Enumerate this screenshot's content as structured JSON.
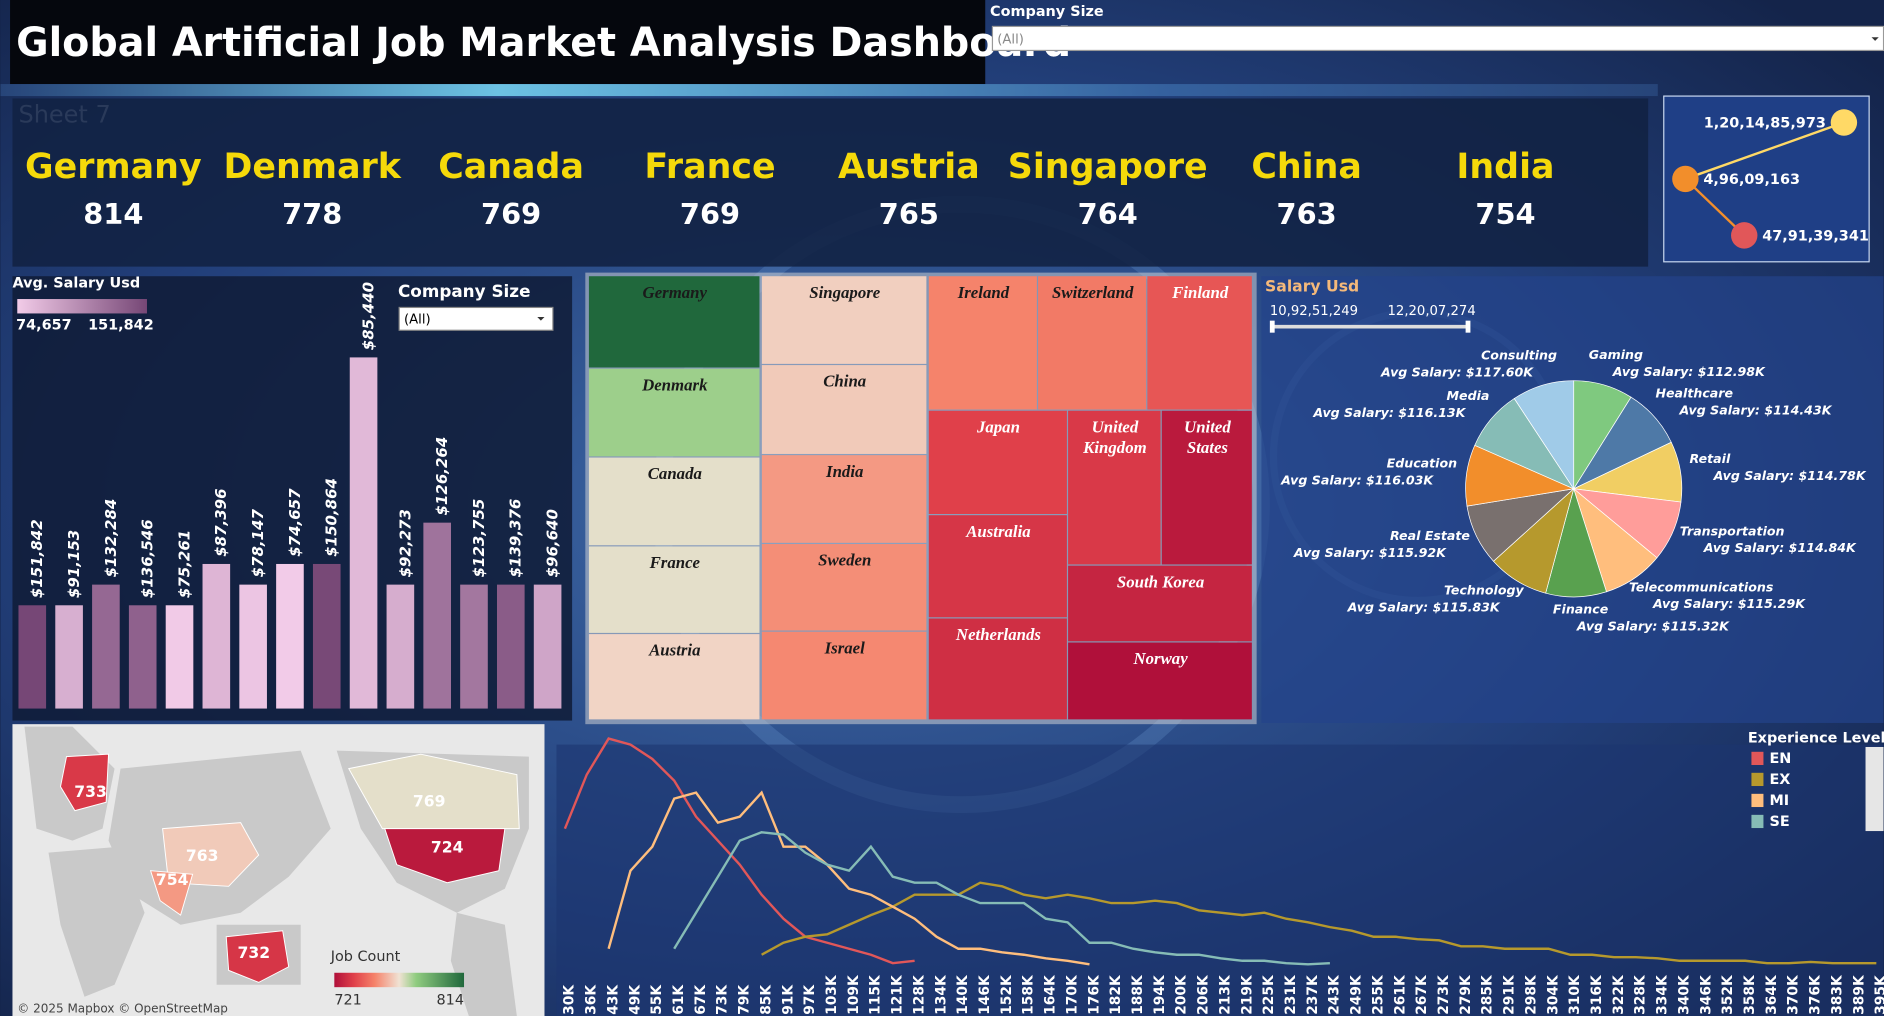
{
  "header": {
    "title": "Global Artificial Job Market Analysis Dashboard",
    "filter_label": "Company Size",
    "filter_value": "(All)"
  },
  "kpi": {
    "sheet": "Sheet 7",
    "countries": [
      "Germany",
      "Denmark",
      "Canada",
      "France",
      "Austria",
      "Singapore",
      "China",
      "India"
    ],
    "counts": [
      814,
      778,
      769,
      769,
      765,
      764,
      763,
      754
    ]
  },
  "chart_data": [
    {
      "type": "dot-line",
      "values": [
        1201485973,
        49609163,
        479139341
      ],
      "value_labels": [
        "1,20,14,85,973",
        "4,96,09,163",
        "47,91,39,341"
      ],
      "colors": [
        "#ffd966",
        "#f28e2b",
        "#e15759"
      ]
    },
    {
      "type": "bar",
      "legend_title": "Avg. Salary Usd",
      "filter_label": "Company Size",
      "filter_value": "(All)",
      "colorlim": [
        {
          "value": 74657,
          "label": "74,657"
        },
        {
          "value": 151842,
          "label": "151,842"
        }
      ],
      "colors": [
        "#f2cbe8",
        "#764776"
      ],
      "values": [
        151842,
        91153,
        132284,
        136546,
        75261,
        87396,
        78147,
        74657,
        150864,
        85440,
        92273,
        126264,
        123755,
        139376,
        96640
      ],
      "value_labels": [
        "$151,842",
        "$91,153",
        "$132,284",
        "$136,546",
        "$75,261",
        "$87,396",
        "$78,147",
        "$74,657",
        "$150,864",
        "$85,440",
        "$92,273",
        "$126,264",
        "$123,755",
        "$139,376",
        "$96,640"
      ],
      "counts": [
        5,
        5,
        6,
        5,
        5,
        7,
        6,
        7,
        7,
        17,
        6,
        9,
        6,
        6,
        6
      ]
    },
    {
      "type": "treemap",
      "categories": [
        "Germany",
        "Denmark",
        "Canada",
        "France",
        "Austria",
        "Singapore",
        "China",
        "India",
        "Sweden",
        "Israel",
        "Ireland",
        "Switzerland",
        "Finland",
        "Japan",
        "United Kingdom",
        "United States",
        "Australia",
        "Netherlands",
        "South Korea",
        "Norway"
      ],
      "values": [
        814,
        778,
        769,
        769,
        765,
        764,
        763,
        754,
        752,
        751,
        750,
        748,
        740,
        735,
        733,
        724,
        732,
        730,
        727,
        721
      ]
    },
    {
      "type": "pie",
      "title": "Salary Usd",
      "range": [
        {
          "value": 109251249,
          "label": "10,92,51,249"
        },
        {
          "value": 122007274,
          "label": "12,20,07,274"
        }
      ],
      "categories": [
        "Gaming",
        "Healthcare",
        "Retail",
        "Transportation",
        "Telecommunications",
        "Finance",
        "Technology",
        "Real Estate",
        "Education",
        "Media",
        "Consulting"
      ],
      "values": [
        112.98,
        114.43,
        114.78,
        114.84,
        115.29,
        115.32,
        115.83,
        115.92,
        116.03,
        116.13,
        117.6
      ],
      "value_labels": [
        "Avg Salary: $112.98K",
        "Avg Salary: $114.43K",
        "Avg Salary: $114.78K",
        "Avg Salary: $114.84K",
        "Avg Salary: $115.29K",
        "Avg Salary: $115.32K",
        "Avg Salary: $115.83K",
        "Avg Salary: $115.92K",
        "Avg Salary: $116.03K",
        "Avg Salary: $116.13K",
        "Avg Salary: $117.60K"
      ],
      "colors": [
        "#7fc97f",
        "#4e79a7",
        "#f1ce63",
        "#ff9d9a",
        "#ffbe7d",
        "#59a14f",
        "#b6992d",
        "#79706e",
        "#f28e2b",
        "#86bcb6",
        "#a0cbe8"
      ]
    },
    {
      "type": "map",
      "legend_title": "Job Count",
      "colorlim": [
        721,
        814
      ],
      "values": [
        733,
        769,
        724,
        763,
        754,
        732
      ],
      "attribution": "© 2025 Mapbox © OpenStreetMap"
    },
    {
      "type": "line",
      "legend_title": "Experience Level",
      "categories": [
        "30K",
        "36K",
        "43K",
        "49K",
        "55K",
        "61K",
        "67K",
        "73K",
        "79K",
        "85K",
        "91K",
        "97K",
        "103K",
        "109K",
        "115K",
        "121K",
        "128K",
        "134K",
        "140K",
        "146K",
        "152K",
        "158K",
        "164K",
        "170K",
        "176K",
        "182K",
        "188K",
        "194K",
        "200K",
        "206K",
        "213K",
        "219K",
        "225K",
        "231K",
        "237K",
        "243K",
        "249K",
        "255K",
        "261K",
        "267K",
        "273K",
        "279K",
        "285K",
        "291K",
        "298K",
        "304K",
        "310K",
        "316K",
        "322K",
        "328K",
        "334K",
        "340K",
        "346K",
        "352K",
        "358K",
        "364K",
        "370K",
        "376K",
        "383K",
        "389K",
        "395K"
      ],
      "series": [
        {
          "name": "EN",
          "color": "#e15759",
          "values": [
            140,
            185,
            215,
            210,
            198,
            180,
            150,
            130,
            110,
            85,
            65,
            50,
            45,
            40,
            35,
            28,
            30,
            null,
            null,
            null,
            null,
            null,
            null,
            null,
            null,
            null,
            null,
            null,
            null,
            null,
            null,
            null,
            null,
            null,
            null,
            null,
            null,
            null,
            null,
            null,
            null,
            null,
            null,
            null,
            null,
            null,
            null,
            null,
            null,
            null,
            null,
            null,
            null,
            null,
            null,
            null,
            null,
            null,
            null,
            null,
            null
          ]
        },
        {
          "name": "EX",
          "color": "#b6992d",
          "values": [
            null,
            null,
            null,
            null,
            null,
            null,
            null,
            null,
            null,
            35,
            45,
            50,
            52,
            60,
            68,
            75,
            85,
            85,
            85,
            95,
            92,
            85,
            82,
            85,
            82,
            78,
            78,
            80,
            78,
            72,
            70,
            68,
            70,
            65,
            62,
            58,
            55,
            50,
            50,
            48,
            47,
            42,
            42,
            40,
            40,
            40,
            35,
            35,
            33,
            33,
            32,
            30,
            30,
            30,
            30,
            28,
            28,
            29,
            28,
            28,
            28
          ]
        },
        {
          "name": "MI",
          "color": "#ffbe7d",
          "values": [
            null,
            null,
            40,
            105,
            125,
            165,
            170,
            145,
            150,
            170,
            125,
            125,
            110,
            90,
            85,
            75,
            65,
            50,
            40,
            40,
            37,
            35,
            32,
            30,
            27,
            null,
            null,
            null,
            null,
            null,
            null,
            null,
            null,
            null,
            null,
            null,
            null,
            null,
            null,
            null,
            null,
            null,
            null,
            null,
            null,
            null,
            null,
            null,
            null,
            null,
            null,
            null,
            null,
            null,
            null,
            null,
            null,
            null,
            null,
            null,
            null
          ]
        },
        {
          "name": "SE",
          "color": "#86bcb6",
          "values": [
            null,
            null,
            null,
            null,
            null,
            40,
            70,
            100,
            130,
            137,
            135,
            120,
            110,
            105,
            125,
            100,
            95,
            95,
            85,
            78,
            78,
            78,
            65,
            62,
            45,
            45,
            40,
            37,
            35,
            35,
            32,
            30,
            30,
            28,
            27,
            28,
            null,
            null,
            null,
            null,
            null,
            null,
            null,
            null,
            null,
            null,
            null,
            null,
            null,
            null,
            null,
            null,
            null,
            null,
            null,
            null,
            null,
            null,
            null,
            null,
            null
          ]
        }
      ]
    }
  ]
}
